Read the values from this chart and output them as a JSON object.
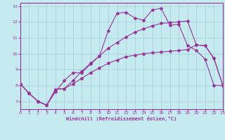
{
  "xlabel": "Windchill (Refroidissement éolien,°C)",
  "bg_color": "#c5eaf0",
  "line_color": "#993399",
  "grid_color": "#a0ccd8",
  "xlim": [
    0,
    23
  ],
  "ylim": [
    6.5,
    13.2
  ],
  "xticks": [
    0,
    1,
    2,
    3,
    4,
    5,
    6,
    7,
    8,
    9,
    10,
    11,
    12,
    13,
    14,
    15,
    16,
    17,
    18,
    19,
    20,
    21,
    22,
    23
  ],
  "yticks": [
    7,
    8,
    9,
    10,
    11,
    12,
    13
  ],
  "line1_x": [
    0,
    1,
    2,
    3,
    4,
    5,
    6,
    7,
    8,
    9,
    10,
    11,
    12,
    13,
    14,
    15,
    16,
    17,
    18,
    19,
    20,
    21,
    22,
    23
  ],
  "line1_y": [
    8.1,
    7.5,
    7.0,
    6.75,
    7.75,
    7.8,
    8.3,
    8.9,
    9.4,
    9.85,
    10.35,
    10.7,
    11.05,
    11.35,
    11.55,
    11.75,
    11.9,
    11.95,
    12.0,
    12.05,
    10.55,
    10.5,
    9.7,
    8.0
  ],
  "line2_x": [
    0,
    1,
    2,
    3,
    4,
    5,
    6,
    7,
    8,
    9,
    10,
    11,
    12,
    13,
    14,
    15,
    16,
    17,
    18,
    19,
    20,
    21,
    22,
    23
  ],
  "line2_y": [
    8.1,
    7.5,
    7.0,
    6.75,
    7.75,
    7.8,
    8.1,
    8.45,
    8.8,
    9.1,
    9.4,
    9.6,
    9.8,
    9.9,
    10.0,
    10.05,
    10.1,
    10.15,
    10.2,
    10.25,
    10.55,
    10.5,
    9.7,
    8.0
  ],
  "line3_x": [
    0,
    1,
    2,
    3,
    4,
    5,
    6,
    7,
    8,
    9,
    10,
    11,
    12,
    13,
    14,
    15,
    16,
    17,
    18,
    19,
    20,
    21,
    22,
    23
  ],
  "line3_y": [
    8.1,
    7.5,
    7.0,
    6.75,
    7.6,
    8.3,
    8.8,
    8.8,
    9.35,
    9.85,
    11.45,
    12.55,
    12.6,
    12.25,
    12.1,
    12.75,
    12.85,
    11.78,
    11.85,
    10.5,
    10.2,
    9.65,
    8.0,
    8.0
  ],
  "markersize": 3,
  "linewidth": 0.8
}
